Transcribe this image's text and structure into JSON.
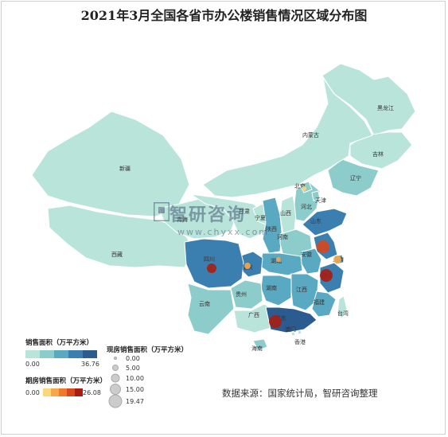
{
  "title": "2021年3月全国各省市办公楼销售情况区域分布图",
  "source": "数据来源：国家统计局，智研咨询整理",
  "watermark": {
    "name": "智研咨询",
    "url": "www.chyxx.com"
  },
  "legend": {
    "sales_title": "销售面积（万平方米）",
    "sales_min": "0.00",
    "sales_max": "36.76",
    "sales_colors": [
      "#b9e4da",
      "#8ccdcc",
      "#5aa9c2",
      "#3b7fb0",
      "#2b5b8f"
    ],
    "futures_title": "期房销售面积（万平方米）",
    "futures_min": "0.00",
    "futures_max": "26.08",
    "futures_colors": [
      "#fbd77a",
      "#f7a64b",
      "#ef7a2b",
      "#d9481c",
      "#a91e12"
    ],
    "current_title": "现房销售面积（万平方米）",
    "current_ticks": [
      "0.00",
      "5.00",
      "10.00",
      "15.00",
      "19.47"
    ]
  },
  "provinces": [
    {
      "name": "黑龙江",
      "level": 0
    },
    {
      "name": "吉林",
      "level": 0
    },
    {
      "name": "辽宁",
      "level": 1
    },
    {
      "name": "内蒙古",
      "level": 0
    },
    {
      "name": "新疆",
      "level": 0
    },
    {
      "name": "西藏",
      "level": 0
    },
    {
      "name": "青海",
      "level": 0
    },
    {
      "name": "甘肃",
      "level": 0
    },
    {
      "name": "宁夏",
      "level": 0
    },
    {
      "name": "陕西",
      "level": 2
    },
    {
      "name": "山西",
      "level": 0
    },
    {
      "name": "河北",
      "level": 1
    },
    {
      "name": "北京",
      "level": 1
    },
    {
      "name": "天津",
      "level": 1
    },
    {
      "name": "山东",
      "level": 3
    },
    {
      "name": "河南",
      "level": 1
    },
    {
      "name": "江苏",
      "level": 3
    },
    {
      "name": "安徽",
      "level": 2
    },
    {
      "name": "上海",
      "level": 2
    },
    {
      "name": "浙江",
      "level": 3
    },
    {
      "name": "湖北",
      "level": 2
    },
    {
      "name": "重庆",
      "level": 3
    },
    {
      "name": "四川",
      "level": 3
    },
    {
      "name": "湖南",
      "level": 2
    },
    {
      "name": "江西",
      "level": 2
    },
    {
      "name": "福建",
      "level": 2
    },
    {
      "name": "贵州",
      "level": 1
    },
    {
      "name": "云南",
      "level": 1
    },
    {
      "name": "广西",
      "level": 0
    },
    {
      "name": "广东",
      "level": 4
    },
    {
      "name": "海南",
      "level": 1
    },
    {
      "name": "台湾",
      "level": 0
    },
    {
      "name": "澳门",
      "level": 0
    },
    {
      "name": "香港",
      "level": 0
    }
  ],
  "futures_markers": [
    {
      "province": "四川",
      "level": 4
    },
    {
      "province": "重庆",
      "level": 1
    },
    {
      "province": "北京",
      "level": 0
    },
    {
      "province": "江苏",
      "level": 3
    },
    {
      "province": "上海",
      "level": 1
    },
    {
      "province": "浙江",
      "level": 4
    },
    {
      "province": "广东",
      "level": 4
    },
    {
      "province": "湖北",
      "level": 1
    }
  ]
}
